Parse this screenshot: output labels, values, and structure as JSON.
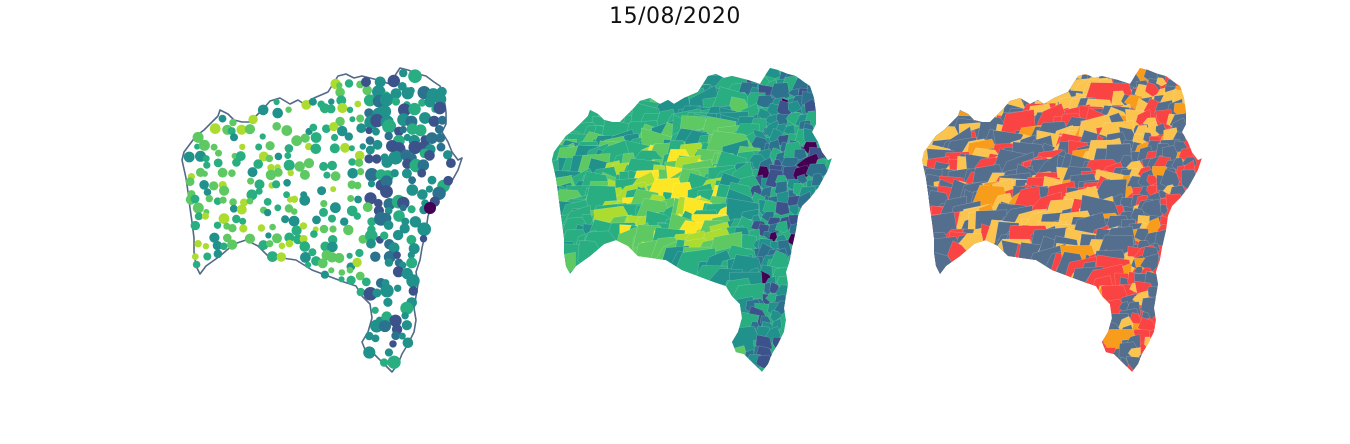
{
  "figure": {
    "title": "15/08/2020"
  },
  "colors": {
    "outline": "#526a87",
    "viridis": [
      "#440154",
      "#3b528b",
      "#2c728e",
      "#21918c",
      "#28ae80",
      "#5ec962",
      "#addc30",
      "#fde725"
    ],
    "risk": [
      "#536f8d",
      "#fbc44e",
      "#fa4343",
      "#f89c1c"
    ]
  },
  "panels": [
    {
      "id": "points",
      "kind": "proportional-symbol map"
    },
    {
      "id": "viridis",
      "kind": "choropleth (viridis)"
    },
    {
      "id": "risk",
      "kind": "choropleth (categorical)"
    }
  ]
}
